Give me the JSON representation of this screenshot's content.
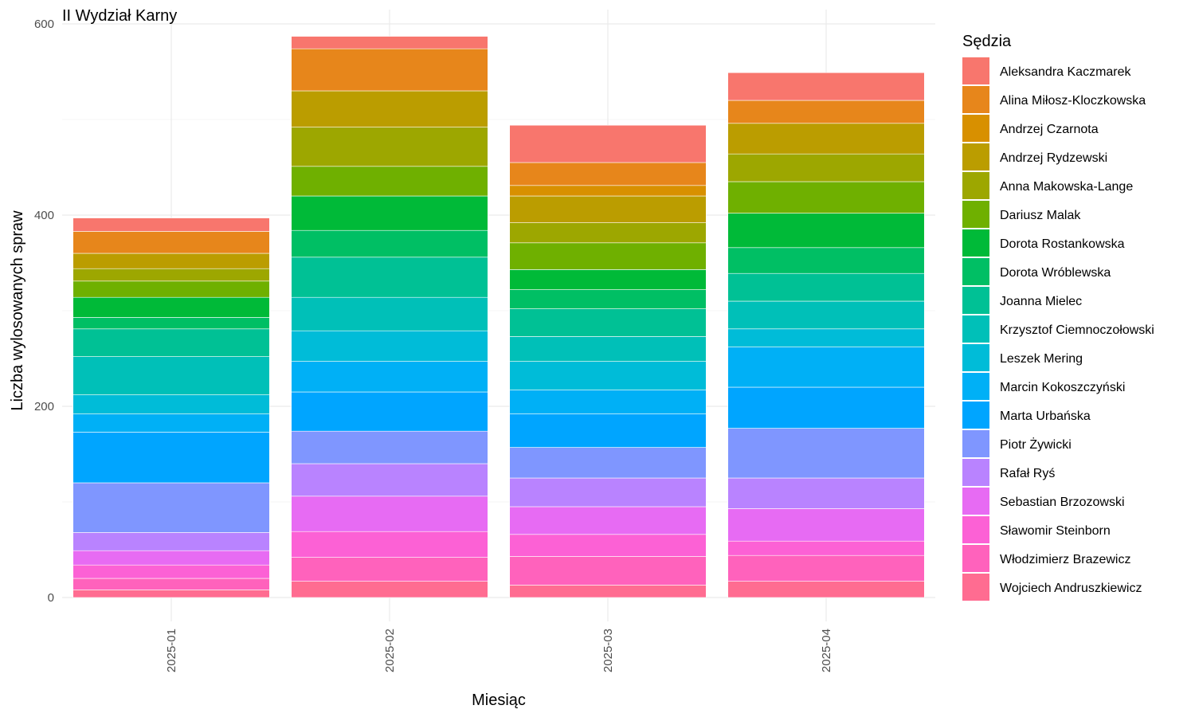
{
  "chart_data": {
    "type": "bar",
    "stacked": true,
    "title": "II Wydział Karny",
    "xlabel": "Miesiąc",
    "ylabel": "Liczba wylosowanych spraw",
    "ylim": [
      -25,
      615
    ],
    "yticks": [
      0,
      200,
      400,
      600
    ],
    "grid": true,
    "legend_title": "Sędzia",
    "legend_position": "right",
    "categories": [
      "2025-01",
      "2025-02",
      "2025-03",
      "2025-04"
    ],
    "series": [
      {
        "name": "Wojciech Andruszkiewicz",
        "color": "#FF6C91",
        "values": [
          8,
          17,
          13,
          17
        ]
      },
      {
        "name": "Włodzimierz Brazewicz",
        "color": "#FF62BC",
        "values": [
          12,
          25,
          30,
          27
        ]
      },
      {
        "name": "Sławomir Steinborn",
        "color": "#FC61D5",
        "values": [
          14,
          27,
          23,
          15
        ]
      },
      {
        "name": "Sebastian Brzozowski",
        "color": "#E76BF3",
        "values": [
          15,
          37,
          29,
          34
        ]
      },
      {
        "name": "Rafał Ryś",
        "color": "#B983FF",
        "values": [
          19,
          34,
          30,
          32
        ]
      },
      {
        "name": "Piotr Żywicki",
        "color": "#7F96FF",
        "values": [
          52,
          34,
          32,
          52
        ]
      },
      {
        "name": "Marta Urbańska",
        "color": "#00A5FF",
        "values": [
          53,
          41,
          35,
          43
        ]
      },
      {
        "name": "Marcin Kokoszczyński",
        "color": "#00B0F6",
        "values": [
          19,
          32,
          25,
          42
        ]
      },
      {
        "name": "Leszek Mering",
        "color": "#00BCD8",
        "values": [
          20,
          32,
          30,
          19
        ]
      },
      {
        "name": "Krzysztof Ciemnoczołowski",
        "color": "#00C0B8",
        "values": [
          40,
          35,
          26,
          29
        ]
      },
      {
        "name": "Joanna Mielec",
        "color": "#00C195",
        "values": [
          29,
          42,
          29,
          29
        ]
      },
      {
        "name": "Dorota Wróblewska",
        "color": "#00BF64",
        "values": [
          12,
          28,
          20,
          27
        ]
      },
      {
        "name": "Dorota Rostankowska",
        "color": "#00BA38",
        "values": [
          21,
          36,
          21,
          36
        ]
      },
      {
        "name": "Dariusz Malak",
        "color": "#6FB000",
        "values": [
          17,
          31,
          28,
          33
        ]
      },
      {
        "name": "Anna Makowska-Lange",
        "color": "#9DA700",
        "values": [
          13,
          41,
          21,
          29
        ]
      },
      {
        "name": "Andrzej Rydzewski",
        "color": "#BB9D00",
        "values": [
          16,
          38,
          28,
          32
        ]
      },
      {
        "name": "Andrzej Czarnota",
        "color": "#D89000",
        "values": [
          0,
          0,
          11,
          0
        ]
      },
      {
        "name": "Alina Miłosz-Kloczkowska",
        "color": "#E7861B",
        "values": [
          23,
          44,
          24,
          24
        ]
      },
      {
        "name": "Aleksandra Kaczmarek",
        "color": "#F8766D",
        "values": [
          14,
          13,
          39,
          29
        ]
      }
    ]
  }
}
